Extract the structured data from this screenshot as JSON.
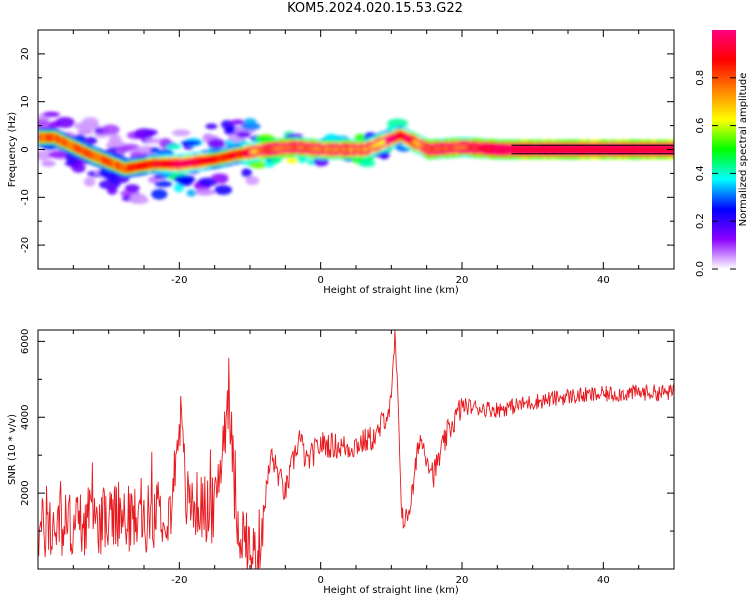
{
  "figure": {
    "title": "KOM5.2024.020.15.53.G22"
  },
  "colors": {
    "snr_line": "#e8191e",
    "background": "#ffffff",
    "axis": "#000000"
  },
  "chart_data": [
    {
      "type": "heatmap",
      "name": "spectrogram",
      "xlabel": "Height of straight line (km)",
      "ylabel": "Frequency (Hz)",
      "xlim": [
        -40,
        50
      ],
      "ylim": [
        -25,
        25
      ],
      "xticks": [
        -20,
        0,
        20,
        40
      ],
      "yticks": [
        20,
        10,
        0,
        -10,
        -20
      ],
      "colorbar": {
        "label": "Normalized spectral amplitude",
        "range": [
          0.0,
          1.0
        ],
        "ticks": [
          0.0,
          0.2,
          0.4,
          0.6,
          0.8
        ],
        "tick_labels": [
          "0.0",
          "0.2",
          "0.4",
          "0.6",
          "0.8"
        ],
        "colormap": [
          "#ffffff",
          "#8a00ff",
          "#0000ff",
          "#00ffff",
          "#00ff00",
          "#ffff00",
          "#ff8000",
          "#ff0000",
          "#ff0080"
        ]
      },
      "ridge": [
        {
          "x": -38,
          "f": 2.5,
          "amp": 0.35
        },
        {
          "x": -33,
          "f": -1.0,
          "amp": 0.35
        },
        {
          "x": -28,
          "f": -4.0,
          "amp": 0.35
        },
        {
          "x": -24,
          "f": -3.0,
          "amp": 0.45
        },
        {
          "x": -20,
          "f": -3.0,
          "amp": 0.6
        },
        {
          "x": -15,
          "f": -2.0,
          "amp": 0.45
        },
        {
          "x": -12,
          "f": -1.0,
          "amp": 0.45
        },
        {
          "x": -8,
          "f": 0.0,
          "amp": 0.75
        },
        {
          "x": -4,
          "f": 0.5,
          "amp": 0.75
        },
        {
          "x": 0,
          "f": 0.0,
          "amp": 0.7
        },
        {
          "x": 6,
          "f": 0.0,
          "amp": 0.7
        },
        {
          "x": 11,
          "f": 3.0,
          "amp": 0.5
        },
        {
          "x": 15,
          "f": 0.0,
          "amp": 0.75
        },
        {
          "x": 20,
          "f": 0.5,
          "amp": 0.75
        },
        {
          "x": 25,
          "f": 0.0,
          "amp": 0.9
        },
        {
          "x": 35,
          "f": 0.0,
          "amp": 0.95
        },
        {
          "x": 50,
          "f": 0.0,
          "amp": 0.95
        }
      ]
    },
    {
      "type": "line",
      "name": "snr",
      "xlabel": "Height of straight line (km)",
      "ylabel": "SNR (10 * v/v)",
      "xlim": [
        -40,
        50
      ],
      "ylim": [
        0,
        6300
      ],
      "xticks": [
        -20,
        0,
        20,
        40
      ],
      "yticks": [
        2000,
        4000,
        6000
      ],
      "series": [
        {
          "x": [
            -40,
            -35,
            -30,
            -25,
            -21,
            -20,
            -19,
            -15,
            -13,
            -12,
            -10,
            -9,
            -7,
            -5,
            -3,
            -2,
            0,
            4,
            8,
            9,
            10,
            10.5,
            11,
            11.5,
            12,
            13,
            14,
            15,
            16,
            18,
            20,
            25,
            30,
            35,
            40,
            45,
            50
          ],
          "values": [
            1000,
            1200,
            1300,
            1300,
            1700,
            4300,
            1800,
            1500,
            4700,
            1400,
            400,
            300,
            3000,
            2000,
            3500,
            2800,
            3300,
            3200,
            3500,
            4000,
            4300,
            6200,
            4000,
            1500,
            1200,
            2000,
            3500,
            3000,
            2500,
            3600,
            4300,
            4200,
            4400,
            4550,
            4600,
            4650,
            4650
          ]
        }
      ]
    }
  ]
}
